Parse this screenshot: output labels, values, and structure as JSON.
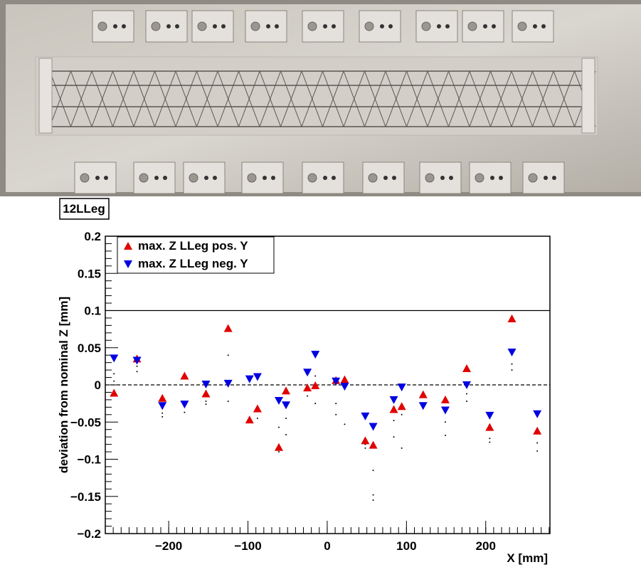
{
  "chart_data": {
    "type": "scatter",
    "title": "12LLeg",
    "xlabel": "X [mm]",
    "ylabel": "deviation from nominal Z [mm]",
    "xlim": [
      -280,
      281
    ],
    "ylim": [
      -0.2,
      0.2
    ],
    "xticks": [
      {
        "value": -200,
        "label": "−200"
      },
      {
        "value": -100,
        "label": "−100"
      },
      0,
      100,
      200
    ],
    "yticks": [
      {
        "value": -0.2,
        "label": "−0.2"
      },
      {
        "value": -0.15,
        "label": "−0.15"
      },
      {
        "value": -0.1,
        "label": "−0.1"
      },
      {
        "value": -0.05,
        "label": "−0.05"
      },
      0,
      0.05,
      0.1,
      0.15,
      0.2
    ],
    "reference_lines": [
      {
        "value": 0.1,
        "style": "solid"
      },
      {
        "value": 0,
        "style": "dashed"
      }
    ],
    "legend": "upper left",
    "series": [
      {
        "name": "max. Z LLeg pos. Y",
        "color": "#e00000",
        "marker": "triangle-up",
        "x": [
          -269,
          -240,
          -208,
          -180,
          -153,
          -125,
          -98,
          -88,
          -61,
          -52,
          -25,
          -15,
          11,
          22,
          48,
          58,
          84,
          94,
          121,
          149,
          176,
          205,
          233,
          265
        ],
        "values": [
          -0.011,
          0.035,
          -0.018,
          0.012,
          -0.012,
          0.076,
          -0.047,
          -0.032,
          -0.084,
          -0.008,
          -0.004,
          -0.001,
          0.006,
          0.007,
          -0.075,
          -0.081,
          -0.033,
          -0.029,
          -0.013,
          -0.02,
          0.022,
          -0.057,
          0.089,
          -0.062
        ]
      },
      {
        "name": "max. Z LLeg neg. Y",
        "color": "#0000e0",
        "marker": "triangle-down",
        "x": [
          -269,
          -240,
          -208,
          -180,
          -153,
          -125,
          -98,
          -88,
          -61,
          -52,
          -25,
          -15,
          11,
          22,
          48,
          58,
          84,
          94,
          121,
          149,
          176,
          205,
          233,
          265
        ],
        "values": [
          0.036,
          0.033,
          -0.028,
          -0.026,
          0.001,
          0.002,
          0.008,
          0.011,
          -0.021,
          -0.027,
          0.017,
          0.041,
          0.005,
          -0.002,
          -0.042,
          -0.056,
          -0.02,
          -0.003,
          -0.028,
          -0.034,
          0.0,
          -0.041,
          0.044,
          -0.039
        ]
      },
      {
        "color": "#000000",
        "marker": "dot",
        "x": [
          -269,
          -269,
          -240,
          -240,
          -208,
          -208,
          -180,
          -153,
          -153,
          -125,
          -125,
          -98,
          -88,
          -61,
          -61,
          -52,
          -52,
          -25,
          -15,
          -15,
          11,
          11,
          22,
          48,
          48,
          58,
          58,
          58,
          84,
          84,
          94,
          94,
          121,
          149,
          149,
          176,
          176,
          205,
          205,
          233,
          233,
          265,
          265
        ],
        "values": [
          0.015,
          0.005,
          0.025,
          0.018,
          -0.038,
          -0.043,
          -0.037,
          -0.022,
          -0.026,
          0.04,
          -0.022,
          -0.05,
          -0.045,
          -0.057,
          -0.09,
          -0.045,
          -0.067,
          -0.015,
          -0.025,
          0.012,
          -0.025,
          -0.04,
          -0.053,
          -0.08,
          -0.085,
          -0.115,
          -0.148,
          -0.155,
          -0.048,
          -0.07,
          -0.04,
          -0.085,
          -0.03,
          -0.05,
          -0.068,
          -0.012,
          -0.022,
          -0.072,
          -0.077,
          0.028,
          0.02,
          -0.078,
          -0.089
        ]
      }
    ]
  }
}
